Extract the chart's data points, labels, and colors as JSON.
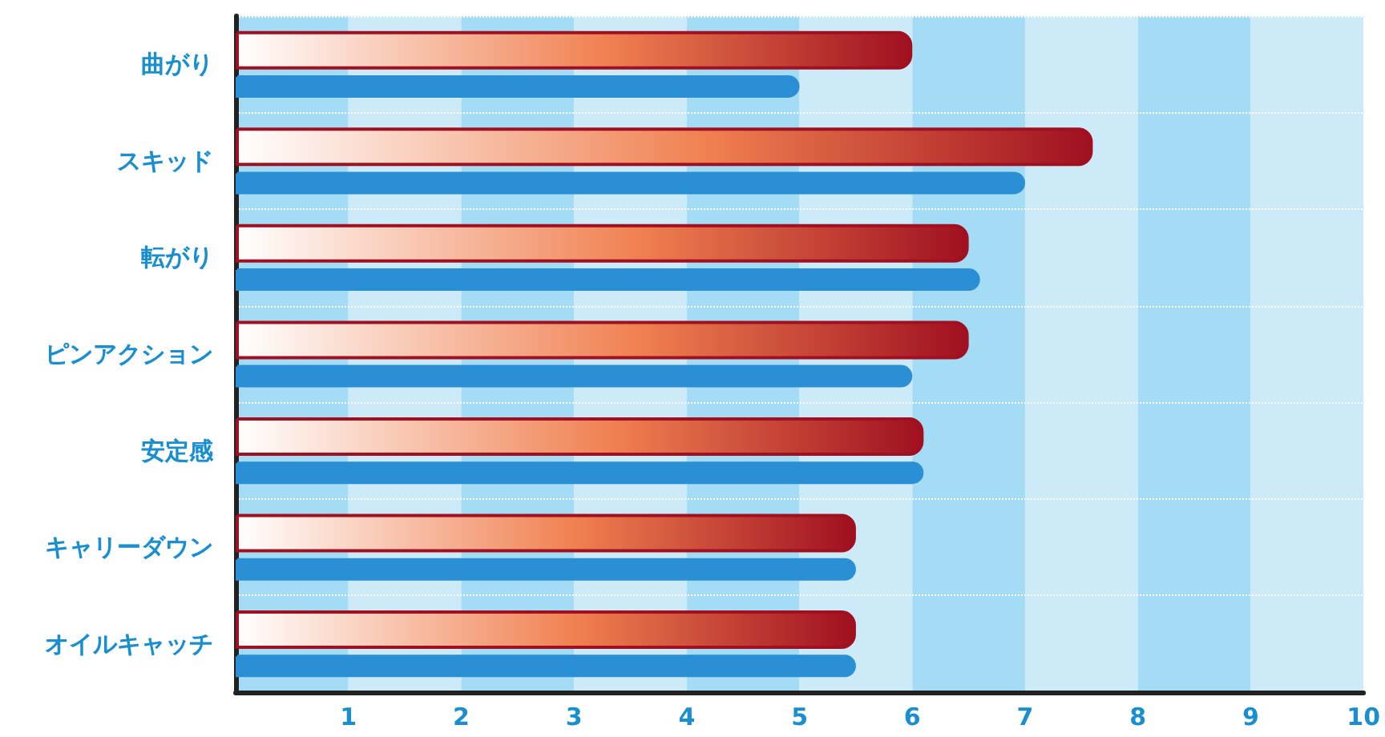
{
  "chart_data": {
    "type": "bar",
    "orientation": "horizontal",
    "categories": [
      "曲がり",
      "スキッド",
      "転がり",
      "ピンアクション",
      "安定感",
      "キャリーダウン",
      "オイルキャッチ"
    ],
    "series": [
      {
        "color": "#a01020",
        "values": [
          6.0,
          7.6,
          6.5,
          6.5,
          6.1,
          5.5,
          5.5
        ]
      },
      {
        "color": "#2a8fd4",
        "values": [
          5.0,
          7.0,
          6.6,
          6.0,
          6.1,
          5.5,
          5.5
        ]
      }
    ],
    "xlim": [
      0,
      10
    ],
    "xticks": [
      1,
      2,
      3,
      4,
      5,
      6,
      7,
      8,
      9,
      10
    ],
    "bands": [
      {
        "axis": "x",
        "from": 0,
        "to": 1,
        "color": "#a4dcf6"
      },
      {
        "axis": "x",
        "from": 1,
        "to": 2,
        "color": "#cdeaf8"
      },
      {
        "axis": "x",
        "from": 2,
        "to": 3,
        "color": "#a4dcf6"
      },
      {
        "axis": "x",
        "from": 3,
        "to": 4,
        "color": "#cdeaf8"
      },
      {
        "axis": "x",
        "from": 4,
        "to": 5,
        "color": "#a4dcf6"
      },
      {
        "axis": "x",
        "from": 5,
        "to": 6,
        "color": "#cdeaf8"
      },
      {
        "axis": "x",
        "from": 6,
        "to": 7,
        "color": "#a4dcf6"
      },
      {
        "axis": "x",
        "from": 7,
        "to": 8,
        "color": "#cdeaf8"
      },
      {
        "axis": "x",
        "from": 8,
        "to": 9,
        "color": "#a4dcf6"
      },
      {
        "axis": "x",
        "from": 9,
        "to": 10,
        "color": "#cdeaf8"
      }
    ],
    "grid": "y"
  }
}
